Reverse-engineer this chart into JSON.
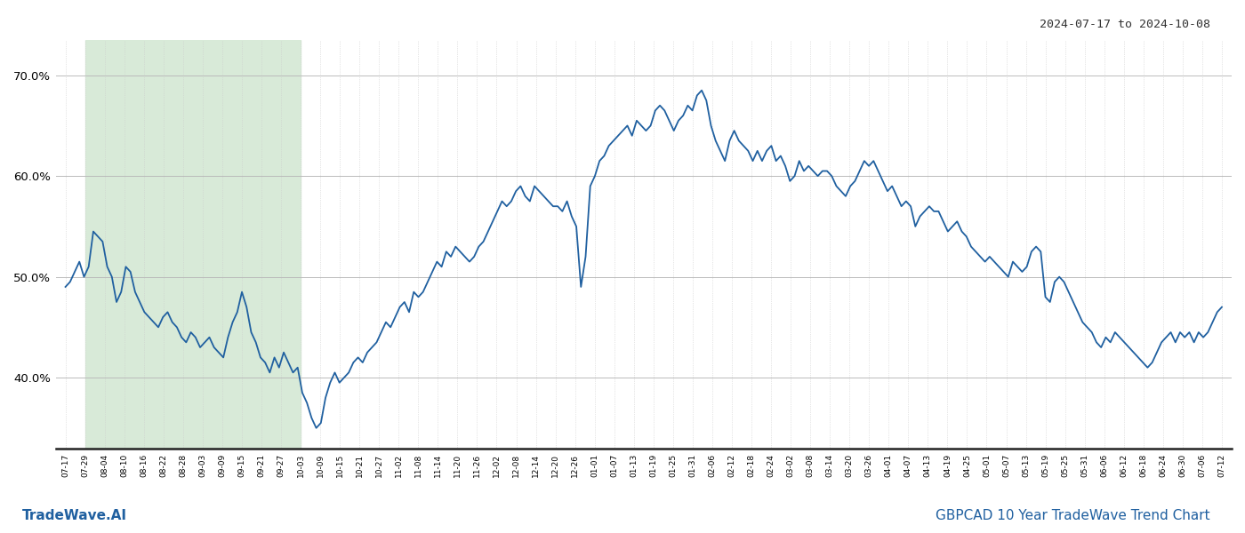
{
  "title_right": "2024-07-17 to 2024-10-08",
  "footer_left": "TradeWave.AI",
  "footer_right": "GBPCAD 10 Year TradeWave Trend Chart",
  "ylim": [
    33.0,
    73.5
  ],
  "yticks": [
    40.0,
    50.0,
    60.0,
    70.0
  ],
  "line_color": "#2060a0",
  "line_width": 1.3,
  "bg_color": "#ffffff",
  "grid_color_h": "#bbbbbb",
  "grid_color_v": "#cccccc",
  "shade_color": "#d8ead8",
  "x_labels": [
    "07-17",
    "07-29",
    "08-04",
    "08-10",
    "08-16",
    "08-22",
    "08-28",
    "09-03",
    "09-09",
    "09-15",
    "09-21",
    "09-27",
    "10-03",
    "10-09",
    "10-15",
    "10-21",
    "10-27",
    "11-02",
    "11-08",
    "11-14",
    "11-20",
    "11-26",
    "12-02",
    "12-08",
    "12-14",
    "12-20",
    "12-26",
    "01-01",
    "01-07",
    "01-13",
    "01-19",
    "01-25",
    "01-31",
    "02-06",
    "02-12",
    "02-18",
    "02-24",
    "03-02",
    "03-08",
    "03-14",
    "03-20",
    "03-26",
    "04-01",
    "04-07",
    "04-13",
    "04-19",
    "04-25",
    "05-01",
    "05-07",
    "05-13",
    "05-19",
    "05-25",
    "05-31",
    "06-06",
    "06-12",
    "06-18",
    "06-24",
    "06-30",
    "07-06",
    "07-12"
  ],
  "shade_start_label": "07-29",
  "shade_end_label": "10-03",
  "values": [
    49.0,
    49.5,
    50.5,
    51.5,
    50.0,
    51.0,
    54.5,
    54.0,
    53.5,
    51.0,
    50.0,
    47.5,
    48.5,
    51.0,
    50.5,
    48.5,
    47.5,
    46.5,
    46.0,
    45.5,
    45.0,
    46.0,
    46.5,
    45.5,
    45.0,
    44.0,
    43.5,
    44.5,
    44.0,
    43.0,
    43.5,
    44.0,
    43.0,
    42.5,
    42.0,
    44.0,
    45.5,
    46.5,
    48.5,
    47.0,
    44.5,
    43.5,
    42.0,
    41.5,
    40.5,
    42.0,
    41.0,
    42.5,
    41.5,
    40.5,
    41.0,
    38.5,
    37.5,
    36.0,
    35.0,
    35.5,
    38.0,
    39.5,
    40.5,
    39.5,
    40.0,
    40.5,
    41.5,
    42.0,
    41.5,
    42.5,
    43.0,
    43.5,
    44.5,
    45.5,
    45.0,
    46.0,
    47.0,
    47.5,
    46.5,
    48.5,
    48.0,
    48.5,
    49.5,
    50.5,
    51.5,
    51.0,
    52.5,
    52.0,
    53.0,
    52.5,
    52.0,
    51.5,
    52.0,
    53.0,
    53.5,
    54.5,
    55.5,
    56.5,
    57.5,
    57.0,
    57.5,
    58.5,
    59.0,
    58.0,
    57.5,
    59.0,
    58.5,
    58.0,
    57.5,
    57.0,
    57.0,
    56.5,
    57.5,
    56.0,
    55.0,
    49.0,
    52.0,
    59.0,
    60.0,
    61.5,
    62.0,
    63.0,
    63.5,
    64.0,
    64.5,
    65.0,
    64.0,
    65.5,
    65.0,
    64.5,
    65.0,
    66.5,
    67.0,
    66.5,
    65.5,
    64.5,
    65.5,
    66.0,
    67.0,
    66.5,
    68.0,
    68.5,
    67.5,
    65.0,
    63.5,
    62.5,
    61.5,
    63.5,
    64.5,
    63.5,
    63.0,
    62.5,
    61.5,
    62.5,
    61.5,
    62.5,
    63.0,
    61.5,
    62.0,
    61.0,
    59.5,
    60.0,
    61.5,
    60.5,
    61.0,
    60.5,
    60.0,
    60.5,
    60.5,
    60.0,
    59.0,
    58.5,
    58.0,
    59.0,
    59.5,
    60.5,
    61.5,
    61.0,
    61.5,
    60.5,
    59.5,
    58.5,
    59.0,
    58.0,
    57.0,
    57.5,
    57.0,
    55.0,
    56.0,
    56.5,
    57.0,
    56.5,
    56.5,
    55.5,
    54.5,
    55.0,
    55.5,
    54.5,
    54.0,
    53.0,
    52.5,
    52.0,
    51.5,
    52.0,
    51.5,
    51.0,
    50.5,
    50.0,
    51.5,
    51.0,
    50.5,
    51.0,
    52.5,
    53.0,
    52.5,
    48.0,
    47.5,
    49.5,
    50.0,
    49.5,
    48.5,
    47.5,
    46.5,
    45.5,
    45.0,
    44.5,
    43.5,
    43.0,
    44.0,
    43.5,
    44.5,
    44.0,
    43.5,
    43.0,
    42.5,
    42.0,
    41.5,
    41.0,
    41.5,
    42.5,
    43.5,
    44.0,
    44.5,
    43.5,
    44.5,
    44.0,
    44.5,
    43.5,
    44.5,
    44.0,
    44.5,
    45.5,
    46.5,
    47.0
  ]
}
